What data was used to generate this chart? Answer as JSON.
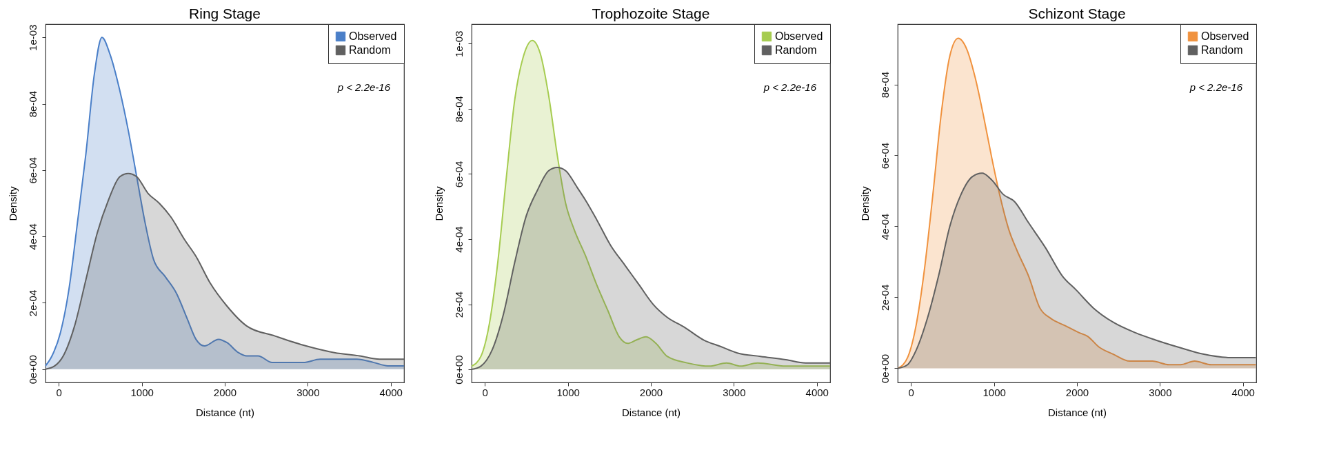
{
  "chart_data": [
    {
      "type": "area",
      "title": "Ring Stage",
      "xlabel": "Distance (nt)",
      "ylabel": "Density",
      "xlim": [
        -160,
        4160
      ],
      "ylim": [
        -4e-05,
        0.00104
      ],
      "xticks": [
        0,
        1000,
        2000,
        3000,
        4000
      ],
      "yticks": [
        {
          "value": 0,
          "label": "0e+00"
        },
        {
          "value": 0.0002,
          "label": "2e-04"
        },
        {
          "value": 0.0004,
          "label": "4e-04"
        },
        {
          "value": 0.0006,
          "label": "6e-04"
        },
        {
          "value": 0.0008,
          "label": "8e-04"
        },
        {
          "value": 0.001,
          "label": "1e-03"
        }
      ],
      "legend": "top right",
      "annotations": [
        "p < 2.2e-16"
      ],
      "series": [
        {
          "name": "Observed",
          "color": "#4a7fc8",
          "x": [
            -160,
            -82,
            20,
            122,
            224,
            327,
            429,
            520,
            616,
            735,
            837,
            939,
            1041,
            1143,
            1279,
            1415,
            1551,
            1653,
            1755,
            1925,
            2027,
            2163,
            2265,
            2401,
            2571,
            2776,
            2946,
            3150,
            3388,
            3592,
            3796,
            3966,
            4160
          ],
          "values": [
            1e-05,
            4e-05,
            0.00011,
            0.00024,
            0.00044,
            0.00065,
            0.00089,
            0.001,
            0.00095,
            0.00084,
            0.00072,
            0.00058,
            0.00044,
            0.00033,
            0.00028,
            0.00023,
            0.00015,
            9e-05,
            7e-05,
            9e-05,
            8e-05,
            5e-05,
            4e-05,
            4e-05,
            2e-05,
            2e-05,
            2e-05,
            3e-05,
            3e-05,
            3e-05,
            2e-05,
            1e-05,
            1e-05
          ]
        },
        {
          "name": "Random",
          "color": "#606060",
          "x": [
            -160,
            -48,
            54,
            190,
            327,
            463,
            599,
            735,
            837,
            939,
            1075,
            1211,
            1347,
            1517,
            1653,
            1823,
            2027,
            2265,
            2605,
            2980,
            3320,
            3626,
            3864,
            4160
          ],
          "values": [
            0,
            1e-05,
            4e-05,
            0.00013,
            0.00027,
            0.00041,
            0.00051,
            0.00058,
            0.00059,
            0.00058,
            0.00053,
            0.0005,
            0.00046,
            0.00039,
            0.00034,
            0.00026,
            0.00019,
            0.00013,
            0.0001,
            7e-05,
            5e-05,
            4e-05,
            3e-05,
            3e-05
          ]
        }
      ]
    },
    {
      "type": "area",
      "title": "Trophozoite Stage",
      "xlabel": "Distance (nt)",
      "ylabel": "Density",
      "xlim": [
        -160,
        4160
      ],
      "ylim": [
        -4e-05,
        0.00106
      ],
      "xticks": [
        0,
        1000,
        2000,
        3000,
        4000
      ],
      "yticks": [
        {
          "value": 0,
          "label": "0e+00"
        },
        {
          "value": 0.0002,
          "label": "2e-04"
        },
        {
          "value": 0.0004,
          "label": "4e-04"
        },
        {
          "value": 0.0006,
          "label": "6e-04"
        },
        {
          "value": 0.0008,
          "label": "8e-04"
        },
        {
          "value": 0.001,
          "label": "1e-03"
        }
      ],
      "legend": "top right",
      "annotations": [
        "p < 2.2e-16"
      ],
      "series": [
        {
          "name": "Observed",
          "color": "#a6cc50",
          "x": [
            -160,
            -48,
            54,
            156,
            259,
            361,
            463,
            571,
            667,
            769,
            871,
            973,
            1075,
            1211,
            1347,
            1483,
            1619,
            1721,
            1823,
            1942,
            2061,
            2197,
            2435,
            2707,
            2912,
            3082,
            3286,
            3626,
            3864,
            4160
          ],
          "values": [
            1e-05,
            4e-05,
            0.00014,
            0.00033,
            0.00059,
            0.00083,
            0.00096,
            0.00101,
            0.00097,
            0.00084,
            0.00066,
            0.00051,
            0.00043,
            0.00035,
            0.00026,
            0.00018,
            0.0001,
            8e-05,
            9e-05,
            0.0001,
            8e-05,
            4e-05,
            2e-05,
            1e-05,
            2e-05,
            1e-05,
            2e-05,
            1e-05,
            1e-05,
            1e-05
          ]
        },
        {
          "name": "Random",
          "color": "#606060",
          "x": [
            -160,
            -48,
            88,
            224,
            361,
            497,
            633,
            769,
            871,
            973,
            1109,
            1211,
            1347,
            1517,
            1687,
            1857,
            2027,
            2197,
            2401,
            2639,
            2844,
            3048,
            3320,
            3626,
            3864,
            4160
          ],
          "values": [
            0,
            1e-05,
            6e-05,
            0.00017,
            0.00033,
            0.00047,
            0.00055,
            0.00061,
            0.00062,
            0.00061,
            0.00056,
            0.00052,
            0.00046,
            0.00038,
            0.00032,
            0.00026,
            0.0002,
            0.00016,
            0.00013,
            9e-05,
            7e-05,
            5e-05,
            4e-05,
            3e-05,
            2e-05,
            2e-05
          ]
        }
      ]
    },
    {
      "type": "area",
      "title": "Schizont Stage",
      "xlabel": "Distance (nt)",
      "ylabel": "Density",
      "xlim": [
        -160,
        4160
      ],
      "ylim": [
        -4e-05,
        0.00097
      ],
      "xticks": [
        0,
        1000,
        2000,
        3000,
        4000
      ],
      "yticks": [
        {
          "value": 0,
          "label": "0e+00"
        },
        {
          "value": 0.0002,
          "label": "2e-04"
        },
        {
          "value": 0.0004,
          "label": "4e-04"
        },
        {
          "value": 0.0006,
          "label": "6e-04"
        },
        {
          "value": 0.0008,
          "label": "8e-04"
        }
      ],
      "legend": "top right",
      "annotations": [
        "p < 2.2e-16"
      ],
      "series": [
        {
          "name": "Observed",
          "color": "#f0923e",
          "x": [
            -153,
            -41,
            61,
            163,
            264,
            366,
            468,
            569,
            671,
            773,
            875,
            976,
            1078,
            1180,
            1281,
            1417,
            1553,
            1688,
            1858,
            2027,
            2129,
            2264,
            2434,
            2637,
            2773,
            2908,
            3112,
            3247,
            3417,
            3620,
            3858,
            4156
          ],
          "values": [
            0,
            3e-05,
            0.00012,
            0.00028,
            0.00049,
            0.00072,
            0.00088,
            0.00093,
            0.0009,
            0.00082,
            0.00071,
            0.00059,
            0.00048,
            0.00039,
            0.00033,
            0.00026,
            0.00017,
            0.00014,
            0.00012,
            0.0001,
            9e-05,
            6e-05,
            4e-05,
            2e-05,
            2e-05,
            2e-05,
            1e-05,
            1e-05,
            2e-05,
            1e-05,
            1e-05,
            1e-05
          ]
        },
        {
          "name": "Random",
          "color": "#606060",
          "x": [
            -153,
            -41,
            61,
            197,
            332,
            468,
            603,
            739,
            858,
            976,
            1112,
            1247,
            1417,
            1620,
            1824,
            1993,
            2197,
            2434,
            2705,
            2942,
            3214,
            3519,
            3858,
            4156
          ],
          "values": [
            0,
            1e-05,
            5e-05,
            0.00014,
            0.00026,
            0.0004,
            0.00049,
            0.00054,
            0.00055,
            0.00053,
            0.00049,
            0.00047,
            0.00041,
            0.00034,
            0.00026,
            0.00022,
            0.00017,
            0.00013,
            0.0001,
            8e-05,
            6e-05,
            4e-05,
            3e-05,
            3e-05
          ]
        }
      ]
    }
  ]
}
